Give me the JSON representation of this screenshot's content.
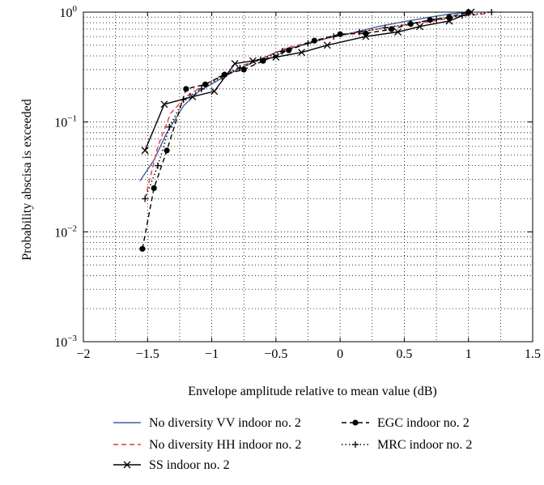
{
  "chart_data": {
    "type": "line",
    "xlabel": "Envelope amplitude relative to mean value (dB)",
    "ylabel": "Probability abscisa is exceeded",
    "xlim": [
      -2,
      1.5
    ],
    "ylim": [
      0.001,
      1
    ],
    "yscale": "log",
    "grid": "dotted",
    "legend_position": "bottom",
    "x_ticks": [
      -2,
      -1.5,
      -1,
      -0.5,
      0,
      0.5,
      1,
      1.5
    ],
    "x_tick_labels": [
      "−2",
      "−1.5",
      "−1",
      "−0.5",
      "0",
      "0.5",
      "1",
      "1.5"
    ],
    "y_ticks": [
      0.001,
      0.01,
      0.1,
      1
    ],
    "y_tick_labels": [
      {
        "base": "10",
        "exp": "−3"
      },
      {
        "base": "10",
        "exp": "−2"
      },
      {
        "base": "10",
        "exp": "−1"
      },
      {
        "base": "10",
        "exp": "0"
      }
    ],
    "series": [
      {
        "name": "No diversity VV indoor no. 2",
        "color": "#3f60a8",
        "dash": "solid",
        "marker": "none",
        "x": [
          -1.56,
          -1.45,
          -1.35,
          -1.22,
          -1.1,
          -0.95,
          -0.8,
          -0.65,
          -0.5,
          -0.3,
          -0.1,
          0.1,
          0.3,
          0.5,
          0.7,
          0.85,
          1.0
        ],
        "y": [
          0.029,
          0.045,
          0.08,
          0.14,
          0.19,
          0.24,
          0.3,
          0.36,
          0.43,
          0.5,
          0.58,
          0.65,
          0.74,
          0.82,
          0.9,
          0.96,
          1.0
        ]
      },
      {
        "name": "No diversity HH indoor no. 2",
        "color": "#e8383d",
        "dash": "dashed",
        "marker": "none",
        "x": [
          -1.52,
          -1.42,
          -1.32,
          -1.2,
          -1.05,
          -0.9,
          -0.75,
          -0.6,
          -0.45,
          -0.25,
          -0.05,
          0.15,
          0.35,
          0.55,
          0.75,
          0.95,
          1.15
        ],
        "y": [
          0.02,
          0.06,
          0.12,
          0.17,
          0.22,
          0.27,
          0.33,
          0.38,
          0.46,
          0.53,
          0.6,
          0.66,
          0.72,
          0.78,
          0.84,
          0.92,
          0.97
        ]
      },
      {
        "name": "SS indoor no. 2",
        "color": "#000000",
        "dash": "solid",
        "marker": "x",
        "x": [
          -1.52,
          -1.37,
          -1.15,
          -0.98,
          -0.82,
          -0.68,
          -0.5,
          -0.3,
          -0.1,
          0.2,
          0.45,
          0.62,
          0.85,
          1.02
        ],
        "y": [
          0.055,
          0.145,
          0.17,
          0.19,
          0.34,
          0.36,
          0.39,
          0.43,
          0.5,
          0.6,
          0.66,
          0.74,
          0.83,
          1.0
        ]
      },
      {
        "name": "EGC indoor no. 2",
        "color": "#000000",
        "dash": "dashed",
        "marker": "o",
        "x": [
          -1.54,
          -1.45,
          -1.35,
          -1.2,
          -1.05,
          -0.9,
          -0.75,
          -0.6,
          -0.4,
          -0.2,
          0.0,
          0.2,
          0.4,
          0.55,
          0.7,
          0.85,
          1.0
        ],
        "y": [
          0.007,
          0.025,
          0.055,
          0.2,
          0.22,
          0.27,
          0.3,
          0.36,
          0.45,
          0.55,
          0.63,
          0.64,
          0.7,
          0.78,
          0.85,
          0.9,
          1.0
        ]
      },
      {
        "name": "MRC indoor no. 2",
        "color": "#000000",
        "dash": "dotted",
        "marker": "+",
        "x": [
          -1.52,
          -1.42,
          -1.33,
          -1.22,
          -1.08,
          -0.92,
          -0.78,
          -0.62,
          -0.45,
          -0.25,
          -0.05,
          0.15,
          0.35,
          0.55,
          0.75,
          0.95,
          1.18
        ],
        "y": [
          0.02,
          0.04,
          0.09,
          0.16,
          0.2,
          0.26,
          0.31,
          0.37,
          0.44,
          0.52,
          0.6,
          0.66,
          0.72,
          0.79,
          0.86,
          0.93,
          1.0
        ]
      }
    ]
  }
}
